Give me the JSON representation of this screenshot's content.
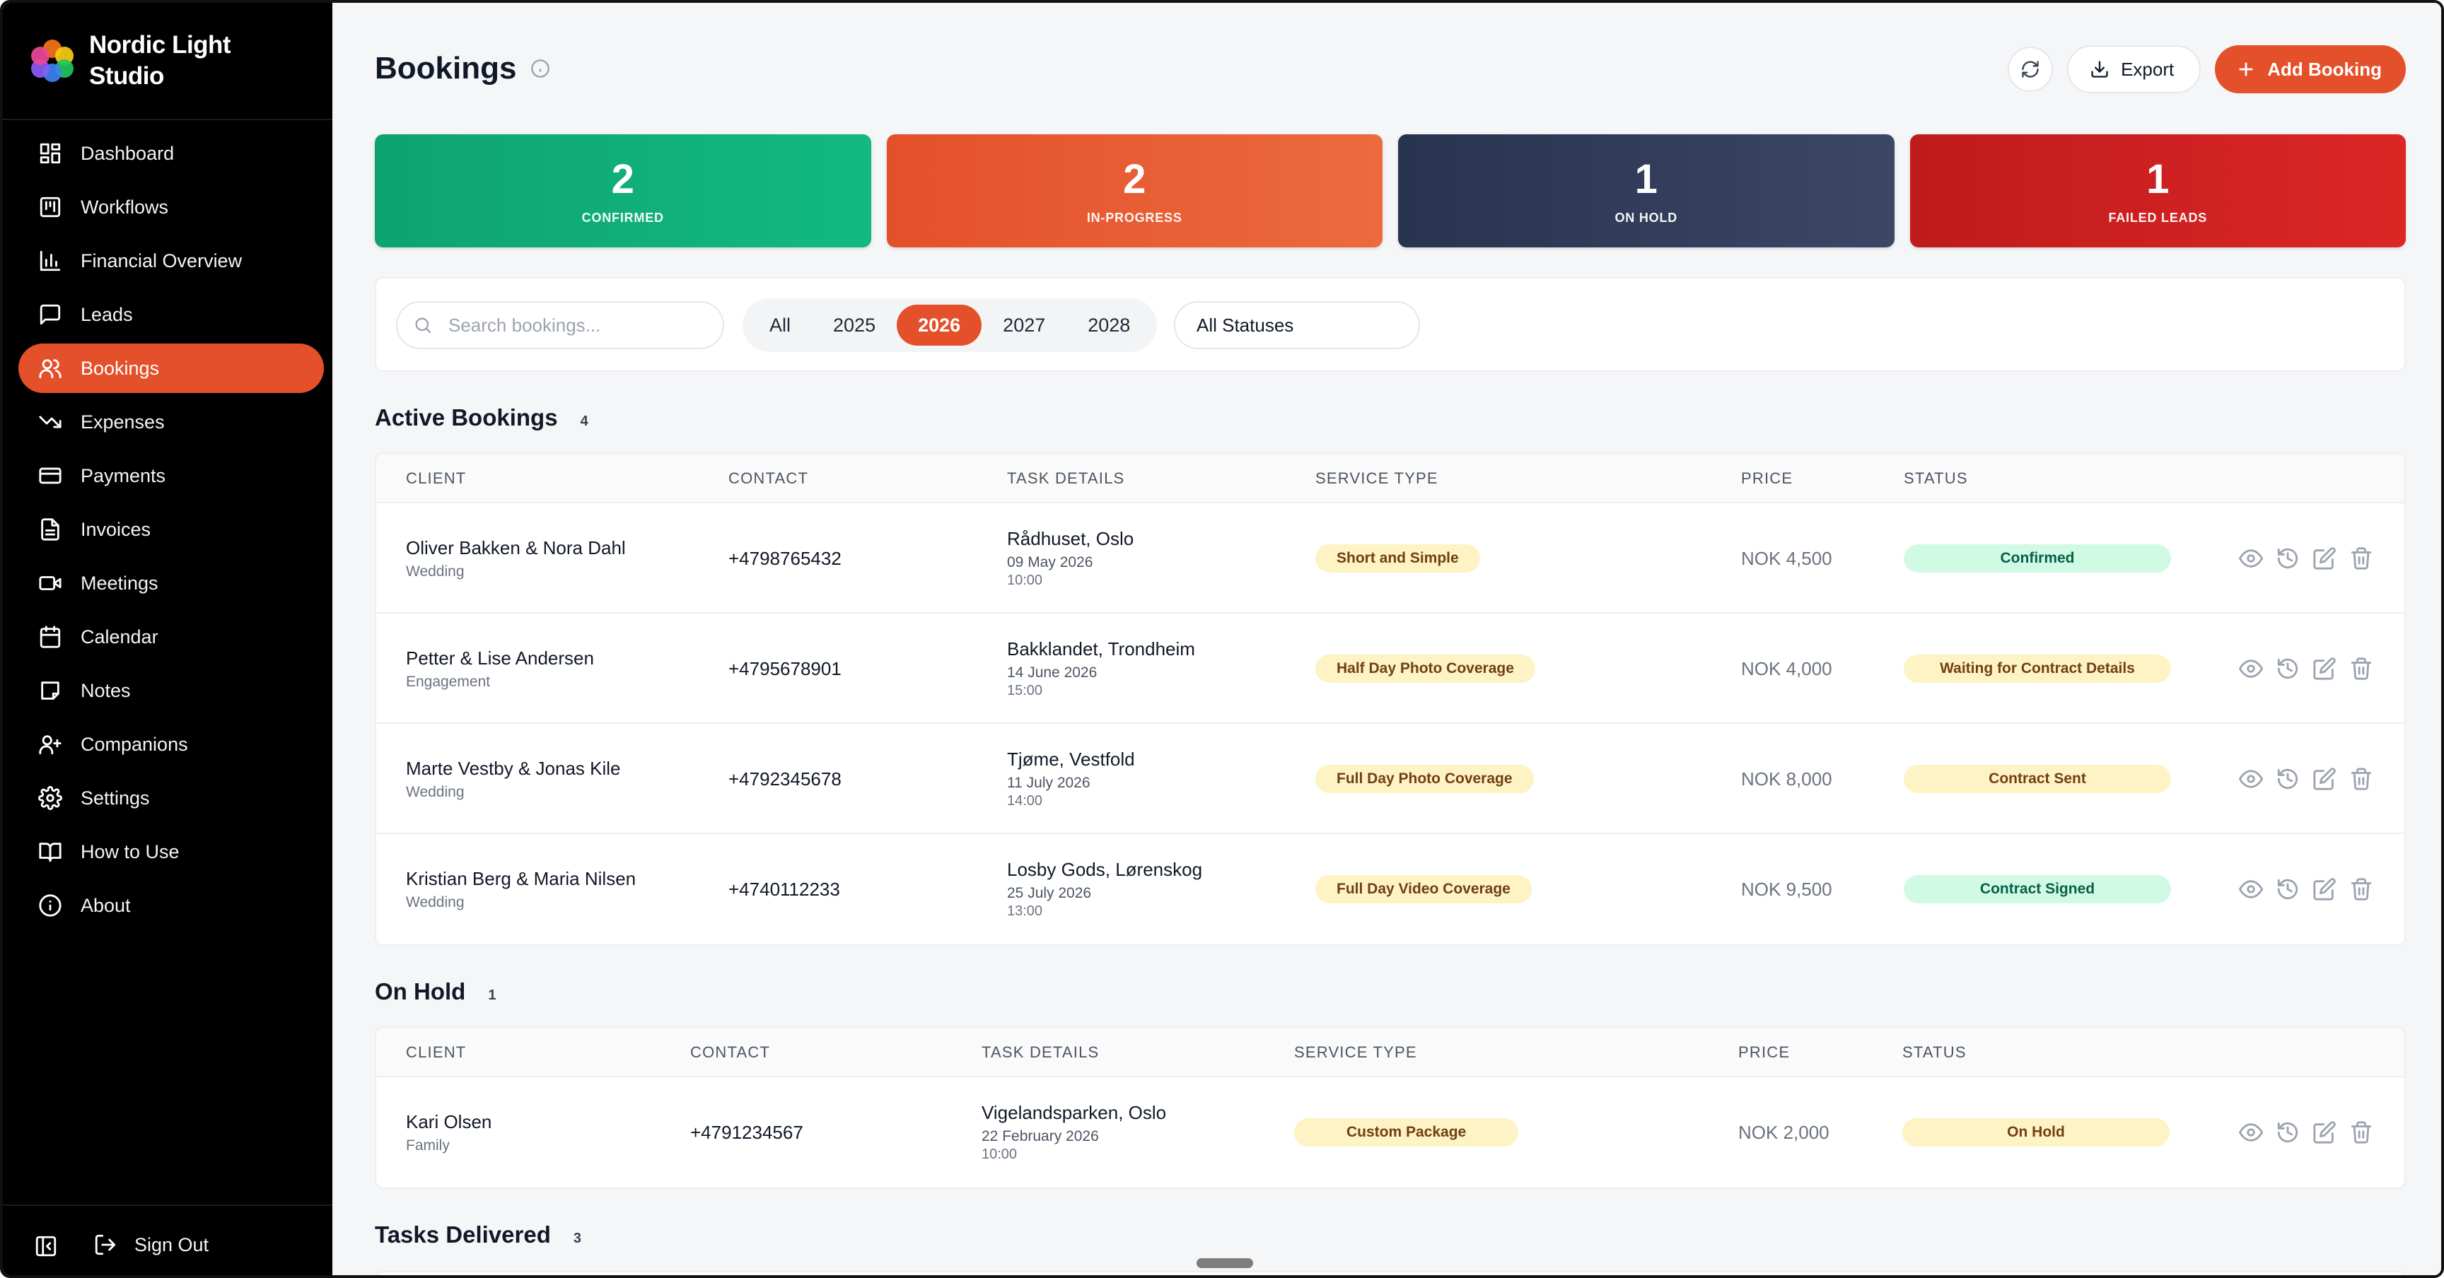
{
  "app": {
    "name": "Nordic Light Studio",
    "name_line1": "Nordic Light",
    "name_line2": "Studio"
  },
  "sidebar": {
    "items": [
      {
        "label": "Dashboard",
        "icon": "dashboard-icon"
      },
      {
        "label": "Workflows",
        "icon": "kanban-icon"
      },
      {
        "label": "Financial Overview",
        "icon": "bar-chart-icon"
      },
      {
        "label": "Leads",
        "icon": "message-square-icon"
      },
      {
        "label": "Bookings",
        "icon": "users-icon",
        "active": true
      },
      {
        "label": "Expenses",
        "icon": "trending-down-icon"
      },
      {
        "label": "Payments",
        "icon": "credit-card-icon"
      },
      {
        "label": "Invoices",
        "icon": "file-text-icon"
      },
      {
        "label": "Meetings",
        "icon": "video-icon"
      },
      {
        "label": "Calendar",
        "icon": "calendar-icon"
      },
      {
        "label": "Notes",
        "icon": "note-icon"
      },
      {
        "label": "Companions",
        "icon": "user-plus-icon"
      },
      {
        "label": "Settings",
        "icon": "gear-icon"
      },
      {
        "label": "How to Use",
        "icon": "book-icon"
      },
      {
        "label": "About",
        "icon": "info-icon"
      }
    ],
    "sign_out": "Sign Out"
  },
  "header": {
    "title": "Bookings",
    "export_label": "Export",
    "add_label": "Add Booking"
  },
  "stats": [
    {
      "value": "2",
      "label": "CONFIRMED",
      "color": "#10b077"
    },
    {
      "value": "2",
      "label": "IN-PROGRESS",
      "color": "#e4502a"
    },
    {
      "value": "1",
      "label": "ON HOLD",
      "color": "#2f3a57"
    },
    {
      "value": "1",
      "label": "FAILED LEADS",
      "color": "#cc1f1f"
    }
  ],
  "filters": {
    "search_placeholder": "Search bookings...",
    "years": [
      "All",
      "2025",
      "2026",
      "2027",
      "2028"
    ],
    "active_year": "2026",
    "status_value": "All Statuses"
  },
  "columns": [
    "CLIENT",
    "CONTACT",
    "TASK DETAILS",
    "SERVICE TYPE",
    "PRICE",
    "STATUS"
  ],
  "sections": {
    "active": {
      "title": "Active Bookings",
      "count": "4",
      "rows": [
        {
          "client": "Oliver Bakken & Nora Dahl",
          "type": "Wedding",
          "contact": "+4798765432",
          "location": "Rådhuset, Oslo",
          "date": "09 May 2026",
          "time": "10:00",
          "service": "Short and Simple",
          "price": "NOK 4,500",
          "status": "Confirmed",
          "status_color": "green"
        },
        {
          "client": "Petter & Lise Andersen",
          "type": "Engagement",
          "contact": "+4795678901",
          "location": "Bakklandet, Trondheim",
          "date": "14 June 2026",
          "time": "15:00",
          "service": "Half Day Photo Coverage",
          "price": "NOK 4,000",
          "status": "Waiting for Contract Details",
          "status_color": "yellow"
        },
        {
          "client": "Marte Vestby & Jonas Kile",
          "type": "Wedding",
          "contact": "+4792345678",
          "location": "Tjøme, Vestfold",
          "date": "11 July 2026",
          "time": "14:00",
          "service": "Full Day Photo Coverage",
          "price": "NOK 8,000",
          "status": "Contract Sent",
          "status_color": "yellow"
        },
        {
          "client": "Kristian Berg & Maria Nilsen",
          "type": "Wedding",
          "contact": "+4740112233",
          "location": "Losby Gods, Lørenskog",
          "date": "25 July 2026",
          "time": "13:00",
          "service": "Full Day Video Coverage",
          "price": "NOK 9,500",
          "status": "Contract Signed",
          "status_color": "green"
        }
      ]
    },
    "on_hold": {
      "title": "On Hold",
      "count": "1",
      "rows": [
        {
          "client": "Kari Olsen",
          "type": "Family",
          "contact": "+4791234567",
          "location": "Vigelandsparken, Oslo",
          "date": "22 February 2026",
          "time": "10:00",
          "service": "Custom Package",
          "price": "NOK 2,000",
          "status": "On Hold",
          "status_color": "yellow"
        }
      ]
    },
    "delivered": {
      "title": "Tasks Delivered",
      "count": "3"
    }
  }
}
